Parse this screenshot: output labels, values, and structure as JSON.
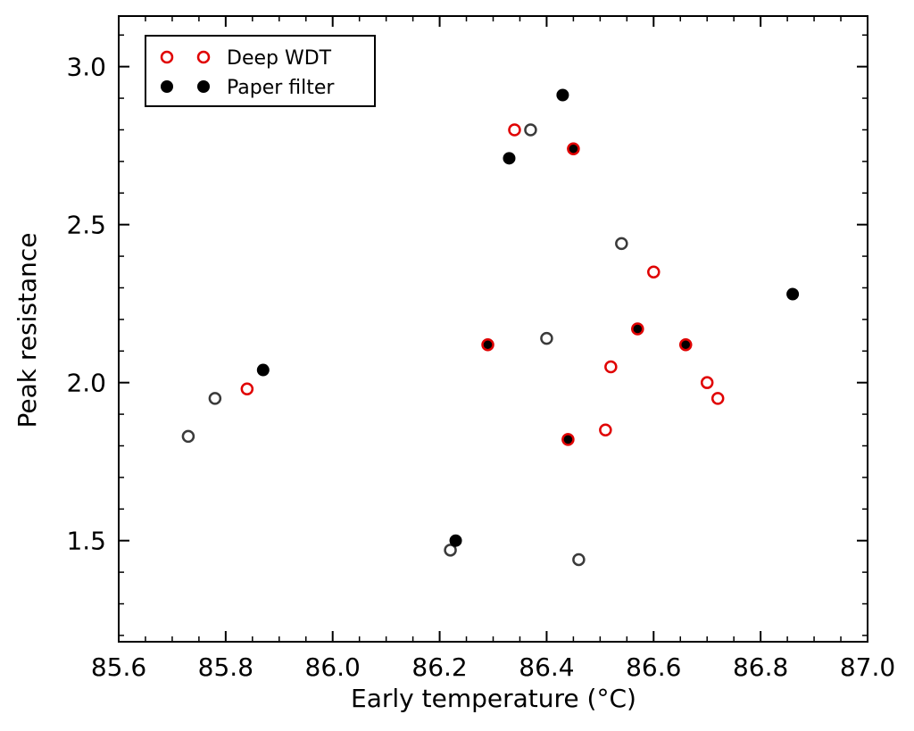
{
  "chart_data": {
    "type": "scatter",
    "title": "",
    "xlabel": "Early temperature (°C)",
    "ylabel": "Peak resistance",
    "xlim": [
      85.6,
      87.0
    ],
    "ylim": [
      1.18,
      3.16
    ],
    "xticks": [
      85.6,
      85.8,
      86.0,
      86.2,
      86.4,
      86.6,
      86.8,
      87.0
    ],
    "xtick_labels": [
      "85.6",
      "85.8",
      "86.0",
      "86.2",
      "86.4",
      "86.6",
      "86.8",
      "87.0"
    ],
    "yticks": [
      1.5,
      2.0,
      2.5,
      3.0
    ],
    "ytick_labels": [
      "1.5",
      "2.0",
      "2.5",
      "3.0"
    ],
    "legend_position": "top-left",
    "series": [
      {
        "name": "Deep WDT",
        "marker": "open-circle",
        "color": "#e00000",
        "points": [
          {
            "x": 85.84,
            "y": 1.98
          },
          {
            "x": 86.34,
            "y": 2.8
          },
          {
            "x": 86.29,
            "y": 2.12
          },
          {
            "x": 86.45,
            "y": 2.74
          },
          {
            "x": 86.44,
            "y": 1.82
          },
          {
            "x": 86.51,
            "y": 1.85
          },
          {
            "x": 86.52,
            "y": 2.05
          },
          {
            "x": 86.57,
            "y": 2.17
          },
          {
            "x": 86.6,
            "y": 2.35
          },
          {
            "x": 86.66,
            "y": 2.12
          },
          {
            "x": 86.7,
            "y": 2.0
          },
          {
            "x": 86.72,
            "y": 1.95
          }
        ]
      },
      {
        "name": "Paper filter",
        "marker": "filled-circle",
        "color": "#000000",
        "points": [
          {
            "x": 85.87,
            "y": 2.04
          },
          {
            "x": 86.23,
            "y": 1.5
          },
          {
            "x": 86.29,
            "y": 2.12
          },
          {
            "x": 86.33,
            "y": 2.71
          },
          {
            "x": 86.43,
            "y": 2.91
          },
          {
            "x": 86.45,
            "y": 2.74
          },
          {
            "x": 86.44,
            "y": 1.82
          },
          {
            "x": 86.57,
            "y": 2.17
          },
          {
            "x": 86.66,
            "y": 2.12
          },
          {
            "x": 86.86,
            "y": 2.28
          }
        ]
      },
      {
        "name": "",
        "marker": "open-circle",
        "color": "#3a3a3a",
        "points": [
          {
            "x": 85.73,
            "y": 1.83
          },
          {
            "x": 85.78,
            "y": 1.95
          },
          {
            "x": 86.22,
            "y": 1.47
          },
          {
            "x": 86.37,
            "y": 2.8
          },
          {
            "x": 86.4,
            "y": 2.14
          },
          {
            "x": 86.46,
            "y": 1.44
          },
          {
            "x": 86.54,
            "y": 2.44
          }
        ]
      }
    ]
  }
}
